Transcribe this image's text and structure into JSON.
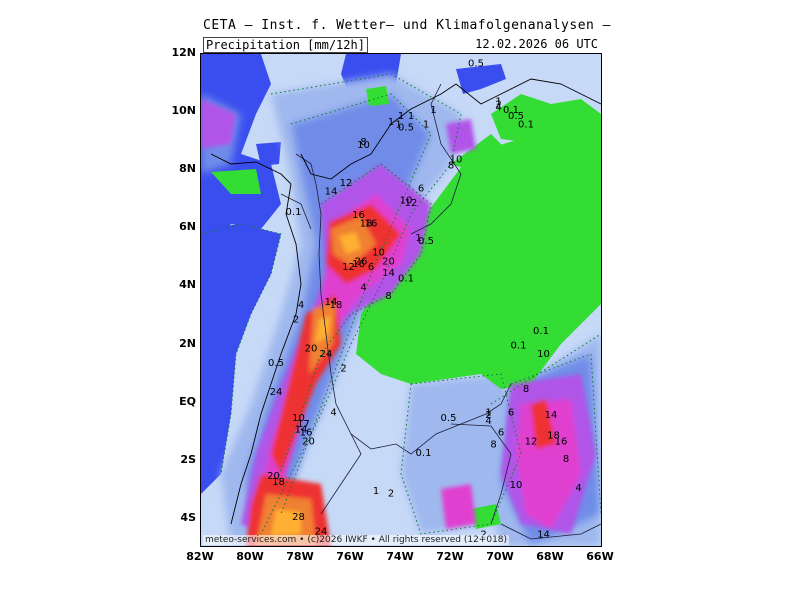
{
  "header": {
    "title": "CETA — Inst. f. Wetter— und Klimafolgenanalysen —",
    "subtitle": "Precipitation [mm/12h]",
    "timestamp": "12.02.2026 06 UTC"
  },
  "axes": {
    "lat_labels": [
      "12N",
      "10N",
      "8N",
      "6N",
      "4N",
      "2N",
      "EQ",
      "2S",
      "4S"
    ],
    "lon_labels": [
      "82W",
      "80W",
      "78W",
      "76W",
      "74W",
      "72W",
      "70W",
      "68W",
      "66W"
    ]
  },
  "credit": "meteo-services.com • (c)2026 IWKF • All rights reserved (12+018)",
  "colors": {
    "sea": "#3a4ef0",
    "land_dry": "#33dd33",
    "precip_light": "#c6d9f7",
    "precip_low": "#9fb8ee",
    "precip_mid": "#6f8ce8",
    "precip_high": "#b055e8",
    "precip_vhigh": "#e040d0",
    "precip_red": "#ee3030",
    "precip_orange": "#f08030",
    "precip_yellow": "#ffb030"
  },
  "contour_labels": [
    {
      "text": "0.5",
      "lon": -71.0,
      "lat": 11.7
    },
    {
      "text": "1",
      "lon": -72.7,
      "lat": 10.1
    },
    {
      "text": "1",
      "lon": -74.0,
      "lat": 9.9
    },
    {
      "text": "1",
      "lon": -73.6,
      "lat": 9.9
    },
    {
      "text": "1",
      "lon": -73.0,
      "lat": 9.6
    },
    {
      "text": "0.5",
      "lon": -73.8,
      "lat": 9.5
    },
    {
      "text": "1",
      "lon": -74.4,
      "lat": 9.7
    },
    {
      "text": "1",
      "lon": -74.1,
      "lat": 9.6
    },
    {
      "text": "1",
      "lon": -70.1,
      "lat": 10.4
    },
    {
      "text": "2",
      "lon": -70.1,
      "lat": 10.3
    },
    {
      "text": "4",
      "lon": -70.1,
      "lat": 10.2
    },
    {
      "text": "0.1",
      "lon": -69.6,
      "lat": 10.1
    },
    {
      "text": "0.5",
      "lon": -69.4,
      "lat": 9.9
    },
    {
      "text": "0.1",
      "lon": -69.0,
      "lat": 9.6
    },
    {
      "text": "8",
      "lon": -75.5,
      "lat": 9.0
    },
    {
      "text": "10",
      "lon": -75.5,
      "lat": 8.9
    },
    {
      "text": "12",
      "lon": -76.2,
      "lat": 7.6
    },
    {
      "text": "14",
      "lon": -76.8,
      "lat": 7.3
    },
    {
      "text": "10",
      "lon": -71.8,
      "lat": 8.4
    },
    {
      "text": "8",
      "lon": -72.0,
      "lat": 8.2
    },
    {
      "text": "6",
      "lon": -73.2,
      "lat": 7.4
    },
    {
      "text": "10",
      "lon": -73.8,
      "lat": 7.0
    },
    {
      "text": "12",
      "lon": -73.6,
      "lat": 6.9
    },
    {
      "text": "0.1",
      "lon": -78.3,
      "lat": 6.6
    },
    {
      "text": "16",
      "lon": -75.7,
      "lat": 6.5
    },
    {
      "text": "18",
      "lon": -75.4,
      "lat": 6.2
    },
    {
      "text": "16",
      "lon": -75.2,
      "lat": 6.2
    },
    {
      "text": "1",
      "lon": -73.3,
      "lat": 5.7
    },
    {
      "text": "0.5",
      "lon": -73.0,
      "lat": 5.6
    },
    {
      "text": "10",
      "lon": -74.9,
      "lat": 5.2
    },
    {
      "text": "20",
      "lon": -74.5,
      "lat": 4.9
    },
    {
      "text": "26",
      "lon": -75.6,
      "lat": 4.9
    },
    {
      "text": "16",
      "lon": -75.7,
      "lat": 4.8
    },
    {
      "text": "12",
      "lon": -76.1,
      "lat": 4.7
    },
    {
      "text": "6",
      "lon": -75.2,
      "lat": 4.7
    },
    {
      "text": "14",
      "lon": -74.5,
      "lat": 4.5
    },
    {
      "text": "0.1",
      "lon": -73.8,
      "lat": 4.3
    },
    {
      "text": "4",
      "lon": -75.5,
      "lat": 4.0
    },
    {
      "text": "8",
      "lon": -74.5,
      "lat": 3.7
    },
    {
      "text": "14",
      "lon": -76.8,
      "lat": 3.5
    },
    {
      "text": "18",
      "lon": -76.6,
      "lat": 3.4
    },
    {
      "text": "4",
      "lon": -78.0,
      "lat": 3.4
    },
    {
      "text": "2",
      "lon": -78.2,
      "lat": 2.9
    },
    {
      "text": "0.1",
      "lon": -68.4,
      "lat": 2.5
    },
    {
      "text": "0.1",
      "lon": -69.3,
      "lat": 2.0
    },
    {
      "text": "20",
      "lon": -77.6,
      "lat": 1.9
    },
    {
      "text": "24",
      "lon": -77.0,
      "lat": 1.7
    },
    {
      "text": "10",
      "lon": -68.3,
      "lat": 1.7
    },
    {
      "text": "0.5",
      "lon": -79.0,
      "lat": 1.4
    },
    {
      "text": "2",
      "lon": -76.3,
      "lat": 1.2
    },
    {
      "text": "8",
      "lon": -69.0,
      "lat": 0.5
    },
    {
      "text": "24",
      "lon": -79.0,
      "lat": 0.4
    },
    {
      "text": "14",
      "lon": -68.0,
      "lat": -0.4
    },
    {
      "text": "1",
      "lon": -70.5,
      "lat": -0.3
    },
    {
      "text": "2",
      "lon": -70.5,
      "lat": -0.4
    },
    {
      "text": "4",
      "lon": -70.5,
      "lat": -0.6
    },
    {
      "text": "6",
      "lon": -69.6,
      "lat": -0.3
    },
    {
      "text": "4",
      "lon": -76.7,
      "lat": -0.3
    },
    {
      "text": "0.5",
      "lon": -72.1,
      "lat": -0.5
    },
    {
      "text": "10",
      "lon": -78.1,
      "lat": -0.5
    },
    {
      "text": "17",
      "lon": -77.9,
      "lat": -0.7
    },
    {
      "text": "14",
      "lon": -78.0,
      "lat": -0.9
    },
    {
      "text": "16",
      "lon": -77.8,
      "lat": -1.0
    },
    {
      "text": "6",
      "lon": -70.0,
      "lat": -1.0
    },
    {
      "text": "18",
      "lon": -67.9,
      "lat": -1.1
    },
    {
      "text": "20",
      "lon": -77.7,
      "lat": -1.3
    },
    {
      "text": "8",
      "lon": -70.3,
      "lat": -1.4
    },
    {
      "text": "12",
      "lon": -68.8,
      "lat": -1.3
    },
    {
      "text": "16",
      "lon": -67.6,
      "lat": -1.3
    },
    {
      "text": "0.1",
      "lon": -73.1,
      "lat": -1.7
    },
    {
      "text": "8",
      "lon": -67.4,
      "lat": -1.9
    },
    {
      "text": "20",
      "lon": -79.1,
      "lat": -2.5
    },
    {
      "text": "18",
      "lon": -78.9,
      "lat": -2.7
    },
    {
      "text": "10",
      "lon": -69.4,
      "lat": -2.8
    },
    {
      "text": "4",
      "lon": -66.9,
      "lat": -2.9
    },
    {
      "text": "1",
      "lon": -75.0,
      "lat": -3.0
    },
    {
      "text": "2",
      "lon": -74.4,
      "lat": -3.1
    },
    {
      "text": "28",
      "lon": -78.1,
      "lat": -3.9
    },
    {
      "text": "24",
      "lon": -77.2,
      "lat": -4.4
    },
    {
      "text": "14",
      "lon": -68.3,
      "lat": -4.5
    },
    {
      "text": "2",
      "lon": -70.7,
      "lat": -4.5
    }
  ]
}
